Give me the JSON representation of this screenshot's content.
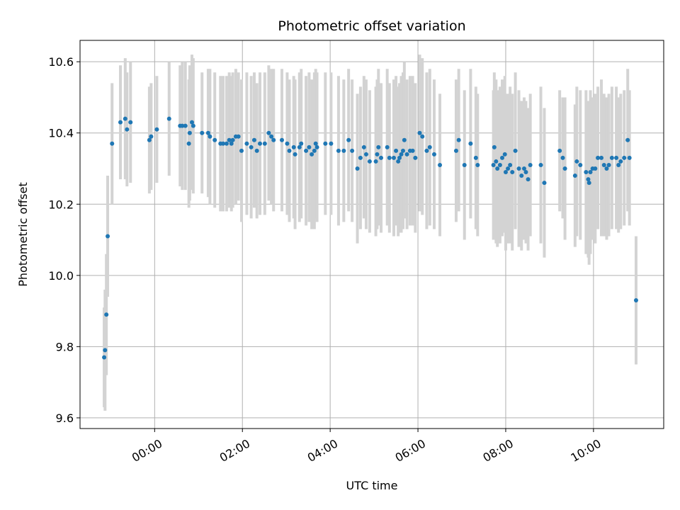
{
  "chart_data": {
    "type": "scatter",
    "title": "Photometric offset variation",
    "xlabel": "UTC time",
    "ylabel": "Photometric offset",
    "x_unit": "hours",
    "xlim": [
      -1.7,
      11.6
    ],
    "ylim": [
      9.57,
      10.66
    ],
    "x_ticks": [
      {
        "value": 0,
        "label": "00:00"
      },
      {
        "value": 2,
        "label": "02:00"
      },
      {
        "value": 4,
        "label": "04:00"
      },
      {
        "value": 6,
        "label": "06:00"
      },
      {
        "value": 8,
        "label": "08:00"
      },
      {
        "value": 10,
        "label": "10:00"
      }
    ],
    "y_ticks": [
      {
        "value": 9.6,
        "label": "9.6"
      },
      {
        "value": 9.8,
        "label": "9.8"
      },
      {
        "value": 10.0,
        "label": "10.0"
      },
      {
        "value": 10.2,
        "label": "10.2"
      },
      {
        "value": 10.4,
        "label": "10.4"
      },
      {
        "value": 10.6,
        "label": "10.6"
      }
    ],
    "grid": true,
    "marker_color": "#1f77b4",
    "errorbar_color": "#d3d3d3",
    "points": [
      [
        -1.15,
        9.77,
        0.14
      ],
      [
        -1.13,
        9.79,
        0.17
      ],
      [
        -1.1,
        9.89,
        0.17
      ],
      [
        -1.07,
        10.11,
        0.17
      ],
      [
        -0.97,
        10.37,
        0.17
      ],
      [
        -0.78,
        10.43,
        0.16
      ],
      [
        -0.67,
        10.44,
        0.17
      ],
      [
        -0.63,
        10.41,
        0.16
      ],
      [
        -0.55,
        10.43,
        0.17
      ],
      [
        -0.12,
        10.38,
        0.15
      ],
      [
        -0.08,
        10.39,
        0.15
      ],
      [
        0.05,
        10.41,
        0.15
      ],
      [
        0.33,
        10.44,
        0.16
      ],
      [
        0.58,
        10.42,
        0.17
      ],
      [
        0.63,
        10.42,
        0.18
      ],
      [
        0.7,
        10.42,
        0.18
      ],
      [
        0.78,
        10.37,
        0.18
      ],
      [
        0.8,
        10.4,
        0.19
      ],
      [
        0.85,
        10.43,
        0.19
      ],
      [
        0.88,
        10.42,
        0.19
      ],
      [
        1.08,
        10.4,
        0.17
      ],
      [
        1.22,
        10.4,
        0.18
      ],
      [
        1.26,
        10.39,
        0.19
      ],
      [
        1.37,
        10.38,
        0.19
      ],
      [
        1.5,
        10.37,
        0.19
      ],
      [
        1.56,
        10.37,
        0.19
      ],
      [
        1.64,
        10.37,
        0.19
      ],
      [
        1.7,
        10.38,
        0.19
      ],
      [
        1.75,
        10.37,
        0.19
      ],
      [
        1.78,
        10.38,
        0.19
      ],
      [
        1.85,
        10.39,
        0.19
      ],
      [
        1.91,
        10.39,
        0.18
      ],
      [
        1.98,
        10.35,
        0.2
      ],
      [
        2.1,
        10.37,
        0.2
      ],
      [
        2.2,
        10.36,
        0.2
      ],
      [
        2.27,
        10.38,
        0.19
      ],
      [
        2.33,
        10.35,
        0.19
      ],
      [
        2.4,
        10.37,
        0.2
      ],
      [
        2.51,
        10.37,
        0.2
      ],
      [
        2.6,
        10.4,
        0.19
      ],
      [
        2.66,
        10.39,
        0.19
      ],
      [
        2.71,
        10.38,
        0.2
      ],
      [
        2.9,
        10.38,
        0.2
      ],
      [
        3.02,
        10.37,
        0.2
      ],
      [
        3.07,
        10.35,
        0.2
      ],
      [
        3.17,
        10.36,
        0.2
      ],
      [
        3.2,
        10.34,
        0.21
      ],
      [
        3.3,
        10.36,
        0.21
      ],
      [
        3.34,
        10.37,
        0.21
      ],
      [
        3.45,
        10.35,
        0.21
      ],
      [
        3.52,
        10.36,
        0.21
      ],
      [
        3.58,
        10.34,
        0.21
      ],
      [
        3.64,
        10.35,
        0.22
      ],
      [
        3.67,
        10.37,
        0.21
      ],
      [
        3.7,
        10.36,
        0.21
      ],
      [
        3.89,
        10.37,
        0.2
      ],
      [
        4.02,
        10.37,
        0.2
      ],
      [
        4.19,
        10.35,
        0.21
      ],
      [
        4.31,
        10.35,
        0.2
      ],
      [
        4.42,
        10.38,
        0.2
      ],
      [
        4.5,
        10.35,
        0.2
      ],
      [
        4.62,
        10.3,
        0.21
      ],
      [
        4.69,
        10.33,
        0.2
      ],
      [
        4.77,
        10.36,
        0.2
      ],
      [
        4.82,
        10.34,
        0.21
      ],
      [
        4.9,
        10.32,
        0.2
      ],
      [
        5.04,
        10.32,
        0.21
      ],
      [
        5.07,
        10.34,
        0.21
      ],
      [
        5.1,
        10.36,
        0.22
      ],
      [
        5.16,
        10.33,
        0.21
      ],
      [
        5.3,
        10.36,
        0.22
      ],
      [
        5.35,
        10.33,
        0.21
      ],
      [
        5.45,
        10.33,
        0.22
      ],
      [
        5.5,
        10.35,
        0.21
      ],
      [
        5.55,
        10.32,
        0.21
      ],
      [
        5.58,
        10.33,
        0.21
      ],
      [
        5.62,
        10.34,
        0.22
      ],
      [
        5.66,
        10.35,
        0.22
      ],
      [
        5.69,
        10.38,
        0.22
      ],
      [
        5.75,
        10.34,
        0.21
      ],
      [
        5.82,
        10.35,
        0.21
      ],
      [
        5.88,
        10.35,
        0.21
      ],
      [
        5.94,
        10.33,
        0.21
      ],
      [
        6.04,
        10.4,
        0.22
      ],
      [
        6.1,
        10.39,
        0.22
      ],
      [
        6.2,
        10.35,
        0.22
      ],
      [
        6.27,
        10.36,
        0.22
      ],
      [
        6.37,
        10.34,
        0.21
      ],
      [
        6.5,
        10.31,
        0.2
      ],
      [
        6.87,
        10.35,
        0.2
      ],
      [
        6.93,
        10.38,
        0.2
      ],
      [
        7.06,
        10.31,
        0.21
      ],
      [
        7.2,
        10.37,
        0.21
      ],
      [
        7.32,
        10.33,
        0.2
      ],
      [
        7.36,
        10.31,
        0.2
      ],
      [
        7.72,
        10.31,
        0.21
      ],
      [
        7.74,
        10.36,
        0.21
      ],
      [
        7.78,
        10.32,
        0.23
      ],
      [
        7.81,
        10.3,
        0.22
      ],
      [
        7.87,
        10.31,
        0.22
      ],
      [
        7.92,
        10.33,
        0.22
      ],
      [
        7.98,
        10.34,
        0.22
      ],
      [
        8.0,
        10.29,
        0.22
      ],
      [
        8.05,
        10.3,
        0.21
      ],
      [
        8.1,
        10.31,
        0.22
      ],
      [
        8.15,
        10.29,
        0.22
      ],
      [
        8.22,
        10.35,
        0.22
      ],
      [
        8.3,
        10.3,
        0.22
      ],
      [
        8.36,
        10.28,
        0.21
      ],
      [
        8.42,
        10.3,
        0.2
      ],
      [
        8.46,
        10.29,
        0.2
      ],
      [
        8.51,
        10.27,
        0.2
      ],
      [
        8.56,
        10.31,
        0.2
      ],
      [
        8.8,
        10.31,
        0.22
      ],
      [
        8.88,
        10.26,
        0.21
      ],
      [
        9.23,
        10.35,
        0.17
      ],
      [
        9.3,
        10.33,
        0.17
      ],
      [
        9.35,
        10.3,
        0.2
      ],
      [
        9.58,
        10.28,
        0.2
      ],
      [
        9.62,
        10.32,
        0.21
      ],
      [
        9.7,
        10.31,
        0.21
      ],
      [
        9.83,
        10.29,
        0.23
      ],
      [
        9.88,
        10.27,
        0.22
      ],
      [
        9.9,
        10.26,
        0.23
      ],
      [
        9.93,
        10.29,
        0.23
      ],
      [
        9.98,
        10.3,
        0.2
      ],
      [
        10.04,
        10.3,
        0.21
      ],
      [
        10.1,
        10.33,
        0.2
      ],
      [
        10.18,
        10.33,
        0.22
      ],
      [
        10.24,
        10.31,
        0.2
      ],
      [
        10.3,
        10.3,
        0.2
      ],
      [
        10.35,
        10.31,
        0.2
      ],
      [
        10.42,
        10.33,
        0.2
      ],
      [
        10.52,
        10.33,
        0.2
      ],
      [
        10.57,
        10.31,
        0.19
      ],
      [
        10.62,
        10.32,
        0.19
      ],
      [
        10.7,
        10.33,
        0.19
      ],
      [
        10.78,
        10.38,
        0.2
      ],
      [
        10.82,
        10.33,
        0.19
      ],
      [
        10.97,
        9.93,
        0.18
      ]
    ]
  }
}
